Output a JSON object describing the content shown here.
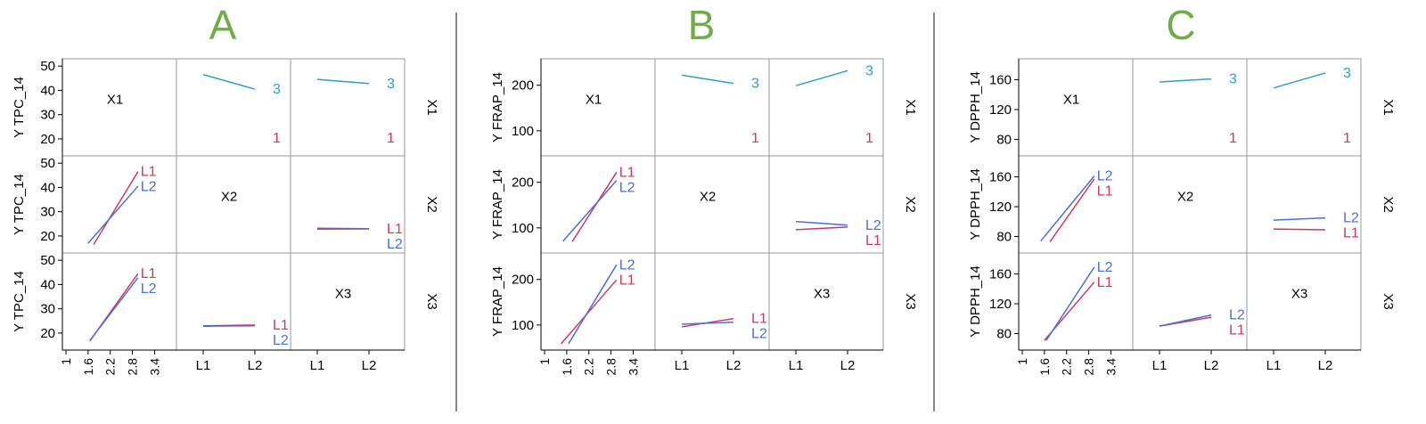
{
  "chart_data": [
    {
      "type": "line",
      "panel_label": "A",
      "response": "Y TPC_14",
      "factors": [
        "X1",
        "X2",
        "X3"
      ],
      "x1_ticks": [
        "1",
        "1.6",
        "2.2",
        "2.8",
        "3.4"
      ],
      "level_ticks": [
        "L1",
        "L2"
      ],
      "y_ticks": [
        20,
        30,
        40,
        50
      ],
      "ylim": [
        13,
        53
      ],
      "cells": [
        {
          "row": 0,
          "col": 1,
          "series": [
            {
              "name": "1",
              "values": [
                null,
                null
              ]
            },
            {
              "name": "3",
              "values": [
                46.5,
                40.5
              ]
            }
          ]
        },
        {
          "row": 0,
          "col": 2,
          "series": [
            {
              "name": "1",
              "values": [
                null,
                null
              ]
            },
            {
              "name": "3",
              "values": [
                44.5,
                42.8
              ]
            }
          ]
        },
        {
          "row": 1,
          "col": 0,
          "series": [
            {
              "name": "L1",
              "x": [
                1.75,
                2.95
              ],
              "values": [
                16.5,
                46.5
              ]
            },
            {
              "name": "L2",
              "x": [
                1.6,
                2.95
              ],
              "values": [
                17.0,
                40.5
              ]
            }
          ]
        },
        {
          "row": 1,
          "col": 2,
          "series": [
            {
              "name": "L1",
              "values": [
                23.2,
                23.0
              ]
            },
            {
              "name": "L2",
              "values": [
                22.8,
                22.9
              ]
            }
          ]
        },
        {
          "row": 2,
          "col": 0,
          "series": [
            {
              "name": "L1",
              "x": [
                1.65,
                2.95
              ],
              "values": [
                16.8,
                44.5
              ]
            },
            {
              "name": "L2",
              "x": [
                1.65,
                2.95
              ],
              "values": [
                17.0,
                42.8
              ]
            }
          ]
        },
        {
          "row": 2,
          "col": 1,
          "series": [
            {
              "name": "L1",
              "values": [
                23.0,
                23.3
              ]
            },
            {
              "name": "L2",
              "values": [
                22.8,
                23.0
              ]
            }
          ]
        }
      ]
    },
    {
      "type": "line",
      "panel_label": "B",
      "response": "Y FRAP_14",
      "factors": [
        "X1",
        "X2",
        "X3"
      ],
      "x1_ticks": [
        "1",
        "1.6",
        "2.2",
        "2.8",
        "3.4"
      ],
      "level_ticks": [
        "L1",
        "L2"
      ],
      "y_ticks": [
        100,
        200
      ],
      "ylim": [
        45,
        258
      ],
      "cells": [
        {
          "row": 0,
          "col": 1,
          "series": [
            {
              "name": "1",
              "values": [
                null,
                null
              ]
            },
            {
              "name": "3",
              "values": [
                222,
                204
              ]
            }
          ]
        },
        {
          "row": 0,
          "col": 2,
          "series": [
            {
              "name": "1",
              "values": [
                null,
                null
              ]
            },
            {
              "name": "3",
              "values": [
                199,
                232
              ]
            }
          ]
        },
        {
          "row": 1,
          "col": 0,
          "series": [
            {
              "name": "L1",
              "x": [
                1.75,
                2.95
              ],
              "values": [
                70,
                222
              ]
            },
            {
              "name": "L2",
              "x": [
                1.5,
                2.95
              ],
              "values": [
                71,
                204
              ]
            }
          ]
        },
        {
          "row": 1,
          "col": 2,
          "series": [
            {
              "name": "L1",
              "values": [
                96,
                102
              ]
            },
            {
              "name": "L2",
              "values": [
                114,
                106
              ]
            }
          ]
        },
        {
          "row": 2,
          "col": 0,
          "series": [
            {
              "name": "L1",
              "x": [
                1.45,
                2.95
              ],
              "values": [
                59,
                199
              ]
            },
            {
              "name": "L2",
              "x": [
                1.65,
                2.95
              ],
              "values": [
                59,
                232
              ]
            }
          ]
        },
        {
          "row": 2,
          "col": 1,
          "series": [
            {
              "name": "L1",
              "values": [
                96,
                114
              ]
            },
            {
              "name": "L2",
              "values": [
                102,
                106
              ]
            }
          ]
        }
      ]
    },
    {
      "type": "line",
      "panel_label": "C",
      "response": "Y DPPH_14",
      "factors": [
        "X1",
        "X2",
        "X3"
      ],
      "x1_ticks": [
        "1",
        "1.6",
        "2.2",
        "2.8",
        "3.4"
      ],
      "level_ticks": [
        "L1",
        "L2"
      ],
      "y_ticks": [
        80,
        120,
        160
      ],
      "ylim": [
        58,
        188
      ],
      "cells": [
        {
          "row": 0,
          "col": 1,
          "series": [
            {
              "name": "1",
              "values": [
                null,
                null
              ]
            },
            {
              "name": "3",
              "values": [
                157,
                161
              ]
            }
          ]
        },
        {
          "row": 0,
          "col": 2,
          "series": [
            {
              "name": "1",
              "values": [
                null,
                null
              ]
            },
            {
              "name": "3",
              "values": [
                149,
                169
              ]
            }
          ]
        },
        {
          "row": 1,
          "col": 0,
          "series": [
            {
              "name": "L1",
              "x": [
                1.75,
                2.95
              ],
              "values": [
                73,
                157
              ]
            },
            {
              "name": "L2",
              "x": [
                1.5,
                2.95
              ],
              "values": [
                74,
                161
              ]
            }
          ]
        },
        {
          "row": 1,
          "col": 2,
          "series": [
            {
              "name": "L1",
              "values": [
                90,
                89
              ]
            },
            {
              "name": "L2",
              "values": [
                102,
                105
              ]
            }
          ]
        },
        {
          "row": 2,
          "col": 0,
          "series": [
            {
              "name": "L1",
              "x": [
                1.6,
                2.95
              ],
              "values": [
                71,
                149
              ]
            },
            {
              "name": "L2",
              "x": [
                1.65,
                2.95
              ],
              "values": [
                71,
                169
              ]
            }
          ]
        },
        {
          "row": 2,
          "col": 1,
          "series": [
            {
              "name": "L1",
              "values": [
                90,
                102
              ]
            },
            {
              "name": "L2",
              "values": [
                90,
                105
              ]
            }
          ]
        }
      ]
    }
  ],
  "colors": {
    "series_3": "#29A2C6",
    "series_1": "#D2375B",
    "series_L1": "#D2375B",
    "series_L2": "#4A6FD6",
    "panel_letter": "#70AD47",
    "axis_text": "#000000",
    "frame": "#999999",
    "divider": "#888888"
  }
}
